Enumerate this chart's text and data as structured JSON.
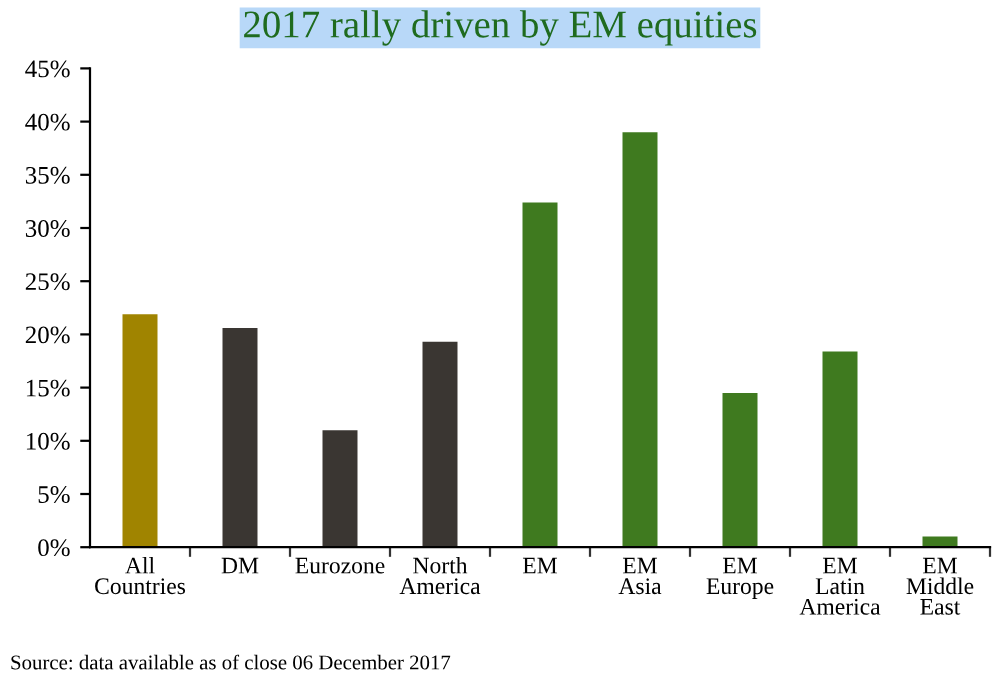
{
  "chart_data": {
    "type": "bar",
    "title": "2017 rally driven by EM equities",
    "categories": [
      "All\nCountries",
      "DM",
      "Eurozone",
      "North\nAmerica",
      "EM",
      "EM\nAsia",
      "EM\nEurope",
      "EM\nLatin\nAmerica",
      "EM\nMiddle\nEast"
    ],
    "values": [
      21.9,
      20.6,
      11.0,
      19.3,
      32.4,
      39.0,
      14.5,
      18.4,
      1.0
    ],
    "colors": [
      "#a08400",
      "#3a3632",
      "#3a3632",
      "#3a3632",
      "#3f7a1f",
      "#3f7a1f",
      "#3f7a1f",
      "#3f7a1f",
      "#3f7a1f"
    ],
    "ylim": [
      0,
      45
    ],
    "yticks": [
      {
        "value": 0,
        "label": "0%"
      },
      {
        "value": 5,
        "label": "5%"
      },
      {
        "value": 10,
        "label": "10%"
      },
      {
        "value": 15,
        "label": "15%"
      },
      {
        "value": 20,
        "label": "20%"
      },
      {
        "value": 25,
        "label": "25%"
      },
      {
        "value": 30,
        "label": "30%"
      },
      {
        "value": 35,
        "label": "35%"
      },
      {
        "value": 40,
        "label": "40%"
      },
      {
        "value": 45,
        "label": "45%"
      }
    ],
    "grid": false,
    "annotations": [
      "Source: data available as of close 06 December 2017"
    ]
  }
}
